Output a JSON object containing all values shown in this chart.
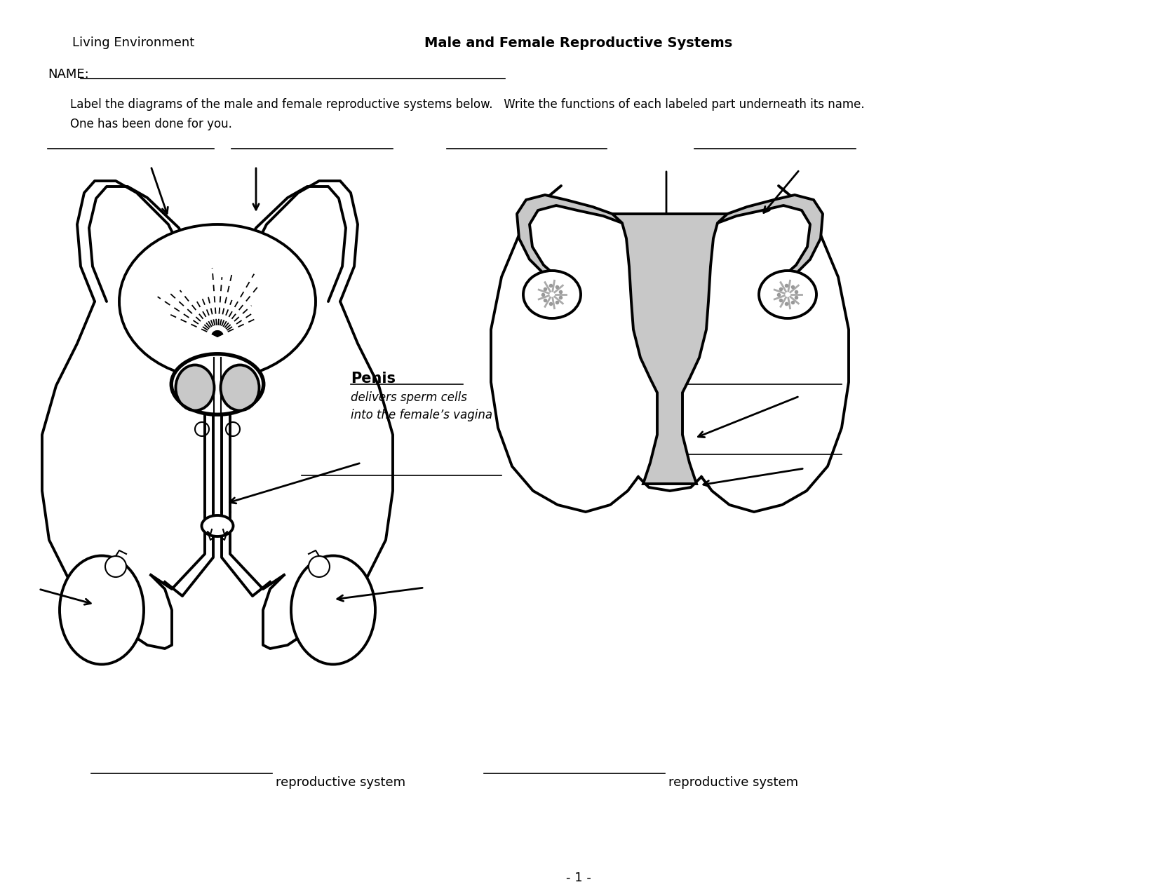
{
  "title": "Male and Female Reproductive Systems",
  "left_header": "Living Environment",
  "name_label": "NAME:",
  "instructions_line1": "Label the diagrams of the male and female reproductive systems below.   Write the functions of each labeled part underneath its name.",
  "instructions_line2": "One has been done for you.",
  "penis_label": "Penis",
  "penis_function_line1": "delivers sperm cells",
  "penis_function_line2": "into the female’s vagina",
  "bottom_left": "reproductive system",
  "bottom_right": "reproductive system",
  "page_num": "- 1 -",
  "bg_color": "#ffffff",
  "line_color": "#000000",
  "gray_fill": "#c8c8c8",
  "lw": 2.8,
  "lw_thin": 1.5
}
